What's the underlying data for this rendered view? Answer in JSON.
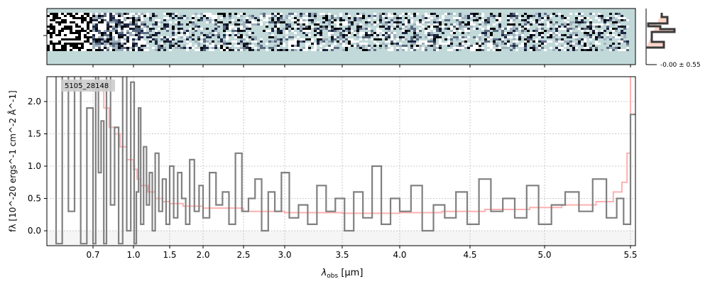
{
  "chart_data": {
    "type": "line",
    "object_label": "5105_28148",
    "xlabel": "λobs [μm]",
    "xlabel_main": "λ",
    "xlabel_sub": "obs",
    "xlabel_unit": " [μm]",
    "ylabel": "fλ [10^-20 ergs^-1 cm^-2 Å^-1]",
    "ylim": [
      -0.23,
      2.38
    ],
    "xlim": [
      0.55,
      5.52
    ],
    "xticks": [
      0.7,
      1.0,
      1.5,
      2.0,
      2.5,
      3.0,
      3.5,
      4.0,
      4.5,
      5.0,
      5.5
    ],
    "xtick_labels": [
      "0.7",
      "1.0",
      "1.5",
      "2.0",
      "2.5",
      "3.0",
      "3.5",
      "4.0",
      "4.5",
      "5.0",
      "5.5"
    ],
    "yticks": [
      0.0,
      0.5,
      1.0,
      1.5,
      2.0
    ],
    "ytick_labels": [
      "0.0",
      "0.5",
      "1.0",
      "1.5",
      "2.0"
    ],
    "grid": true,
    "hist_label": "-0.00 ± 0.55",
    "colors": {
      "data": "#808080",
      "model": "#ffb0b0",
      "twod_bg": "#c2d9d9",
      "hist": "#3a3a3a",
      "hist_fill": "#ffd6cc"
    },
    "series": [
      {
        "name": "data",
        "x": [
          0.56,
          0.58,
          0.6,
          0.62,
          0.64,
          0.66,
          0.68,
          0.7,
          0.72,
          0.74,
          0.76,
          0.78,
          0.8,
          0.83,
          0.86,
          0.89,
          0.92,
          0.95,
          0.98,
          1.01,
          1.04,
          1.07,
          1.1,
          1.14,
          1.18,
          1.22,
          1.26,
          1.3,
          1.35,
          1.4,
          1.45,
          1.5,
          1.56,
          1.62,
          1.68,
          1.74,
          1.8,
          1.87,
          1.94,
          2.0,
          2.08,
          2.16,
          2.24,
          2.32,
          2.4,
          2.48,
          2.56,
          2.64,
          2.72,
          2.8,
          2.88,
          2.96,
          3.04,
          3.12,
          3.2,
          3.28,
          3.36,
          3.44,
          3.52,
          3.6,
          3.68,
          3.76,
          3.84,
          3.92,
          4.0,
          4.08,
          4.16,
          4.24,
          4.32,
          4.4,
          4.48,
          4.56,
          4.64,
          4.72,
          4.8,
          4.88,
          4.96,
          5.04,
          5.12,
          5.2,
          5.28,
          5.36,
          5.42,
          5.46,
          5.5
        ],
        "y": [
          2.4,
          -0.2,
          2.4,
          0.3,
          2.4,
          -0.2,
          1.9,
          -0.2,
          2.4,
          0.9,
          1.7,
          -0.2,
          2.4,
          0.4,
          1.6,
          -0.2,
          2.4,
          0.0,
          2.3,
          -0.2,
          0.6,
          1.9,
          0.1,
          1.3,
          0.4,
          0.9,
          0.0,
          1.2,
          0.3,
          0.8,
          0.1,
          1.0,
          0.2,
          0.9,
          0.5,
          0.1,
          1.1,
          0.3,
          0.7,
          0.2,
          0.9,
          0.4,
          0.6,
          0.1,
          1.2,
          0.3,
          0.5,
          0.8,
          0.0,
          0.6,
          0.3,
          0.9,
          0.2,
          0.4,
          0.1,
          0.7,
          0.3,
          0.5,
          0.0,
          0.6,
          0.2,
          1.0,
          0.1,
          0.5,
          0.3,
          0.7,
          0.0,
          0.4,
          0.2,
          0.6,
          0.1,
          0.8,
          0.3,
          0.5,
          0.2,
          0.7,
          0.1,
          0.4,
          0.6,
          0.3,
          0.8,
          0.2,
          0.5,
          0.1,
          1.8
        ]
      },
      {
        "name": "model",
        "x": [
          0.74,
          0.78,
          0.82,
          0.86,
          0.9,
          0.95,
          1.0,
          1.05,
          1.1,
          1.2,
          1.3,
          1.4,
          1.5,
          1.7,
          2.0,
          2.5,
          3.0,
          3.5,
          4.0,
          4.3,
          4.6,
          4.9,
          5.1,
          5.3,
          5.4,
          5.45,
          5.48,
          5.5
        ],
        "y": [
          2.3,
          1.9,
          1.6,
          1.5,
          1.3,
          1.1,
          0.95,
          0.8,
          0.7,
          0.6,
          0.5,
          0.45,
          0.42,
          0.38,
          0.35,
          0.3,
          0.28,
          0.27,
          0.28,
          0.3,
          0.33,
          0.36,
          0.4,
          0.45,
          0.6,
          0.75,
          1.2,
          2.4
        ]
      }
    ]
  }
}
